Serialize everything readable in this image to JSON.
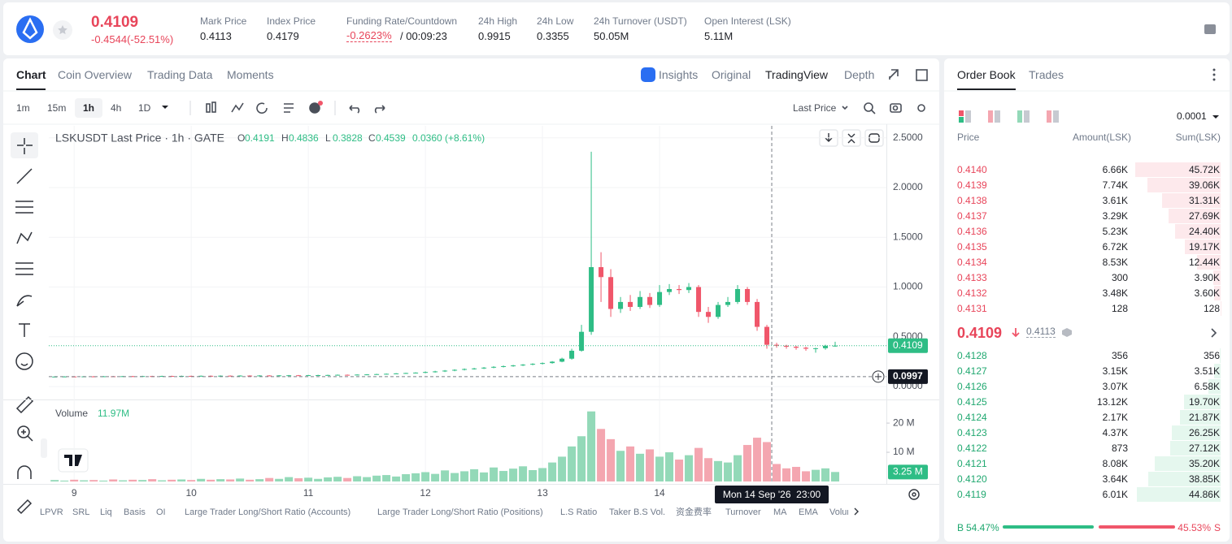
{
  "header": {
    "price": "0.4109",
    "change": "-0.4544(-52.51%)",
    "stats": [
      {
        "label": "Mark Price",
        "value": "0.4113"
      },
      {
        "label": "Index Price",
        "value": "0.4179"
      },
      {
        "label": "Funding Rate/Countdown",
        "value": "-0.2623%",
        "extra": "/ 00:09:23"
      },
      {
        "label": "24h High",
        "value": "0.9915"
      },
      {
        "label": "24h Low",
        "value": "0.3355"
      },
      {
        "label": "24h Turnover (USDT)",
        "value": "50.05M"
      },
      {
        "label": "Open Interest (LSK)",
        "value": "5.11M"
      }
    ]
  },
  "tabs": [
    "Chart",
    "Coin Overview",
    "Trading Data",
    "Moments"
  ],
  "view_tabs": [
    "Insights",
    "Original",
    "TradingView",
    "Depth"
  ],
  "intervals": [
    "1m",
    "15m",
    "1h",
    "4h",
    "1D"
  ],
  "price_source": "Last Price",
  "indicators": [
    "LPVR",
    "SRL",
    "Liq",
    "Basis",
    "OI",
    "Large Trader Long/Short Ratio (Accounts)",
    "Large Trader Long/Short Ratio (Positions)",
    "L.S Ratio",
    "Taker B.S Vol.",
    "资金费率",
    "Turnover",
    "MA",
    "EMA",
    "Volume"
  ],
  "chart_data": {
    "type": "candlestick",
    "title": "LSKUSDT Last Price · 1h · GATE",
    "ohlc_legend": [
      {
        "key": "O",
        "value": 0.4191
      },
      {
        "key": "H",
        "value": 0.4836
      },
      {
        "key": "L",
        "value": 0.3828
      },
      {
        "key": "C",
        "value": 0.4539
      }
    ],
    "change": "0.0360 (+8.61%)",
    "x": [
      -4,
      -2,
      0,
      2,
      4,
      6,
      8,
      10,
      12,
      14,
      16,
      18,
      20,
      22,
      24,
      26,
      28,
      30,
      32,
      34,
      36,
      38,
      40,
      42,
      44,
      46,
      48,
      50,
      52,
      54,
      56,
      58,
      60,
      62,
      64,
      66,
      68,
      70,
      72,
      74,
      76,
      78,
      80,
      82,
      84,
      86,
      88,
      90,
      92,
      94,
      96,
      98,
      100,
      102,
      104,
      106,
      108,
      110,
      112,
      114,
      116,
      118,
      120,
      122,
      124,
      126,
      128,
      130,
      132,
      134,
      136,
      138,
      140,
      142,
      144,
      146,
      148,
      150,
      152,
      154,
      156
    ],
    "open": [
      0.099,
      0.1,
      0.101,
      0.1,
      0.102,
      0.101,
      0.103,
      0.102,
      0.104,
      0.103,
      0.105,
      0.104,
      0.106,
      0.105,
      0.107,
      0.106,
      0.108,
      0.107,
      0.109,
      0.108,
      0.11,
      0.109,
      0.111,
      0.11,
      0.112,
      0.113,
      0.112,
      0.114,
      0.115,
      0.116,
      0.118,
      0.117,
      0.12,
      0.122,
      0.125,
      0.128,
      0.132,
      0.136,
      0.14,
      0.146,
      0.152,
      0.16,
      0.168,
      0.176,
      0.182,
      0.19,
      0.198,
      0.205,
      0.212,
      0.22,
      0.228,
      0.236,
      0.25,
      0.28,
      0.36,
      0.55,
      1.2,
      1.1,
      0.78,
      0.85,
      0.8,
      0.9,
      0.82,
      0.95,
      0.98,
      0.97,
      1.0,
      0.75,
      0.7,
      0.82,
      0.85,
      0.98,
      0.85,
      0.6,
      0.42,
      0.41,
      0.4,
      0.39,
      0.38,
      0.385,
      0.41
    ],
    "high": [
      0.103,
      0.104,
      0.104,
      0.105,
      0.105,
      0.106,
      0.106,
      0.107,
      0.107,
      0.108,
      0.108,
      0.109,
      0.109,
      0.11,
      0.11,
      0.111,
      0.111,
      0.112,
      0.112,
      0.113,
      0.113,
      0.114,
      0.114,
      0.115,
      0.116,
      0.116,
      0.117,
      0.118,
      0.119,
      0.121,
      0.121,
      0.123,
      0.125,
      0.128,
      0.131,
      0.135,
      0.139,
      0.143,
      0.152,
      0.158,
      0.166,
      0.174,
      0.182,
      0.188,
      0.196,
      0.204,
      0.211,
      0.218,
      0.226,
      0.234,
      0.242,
      0.256,
      0.29,
      0.38,
      0.62,
      2.36,
      1.35,
      1.18,
      0.9,
      0.92,
      0.96,
      0.94,
      1.02,
      1.03,
      1.02,
      1.04,
      1.02,
      0.8,
      0.85,
      0.9,
      1.02,
      1.0,
      0.88,
      0.62,
      0.44,
      0.42,
      0.41,
      0.4,
      0.39,
      0.42,
      0.45
    ],
    "low": [
      0.096,
      0.097,
      0.097,
      0.097,
      0.098,
      0.098,
      0.099,
      0.099,
      0.1,
      0.1,
      0.101,
      0.101,
      0.102,
      0.102,
      0.103,
      0.103,
      0.104,
      0.104,
      0.105,
      0.105,
      0.106,
      0.106,
      0.107,
      0.107,
      0.109,
      0.109,
      0.109,
      0.111,
      0.112,
      0.113,
      0.114,
      0.114,
      0.117,
      0.119,
      0.122,
      0.125,
      0.129,
      0.133,
      0.134,
      0.14,
      0.146,
      0.154,
      0.162,
      0.17,
      0.176,
      0.184,
      0.192,
      0.199,
      0.206,
      0.214,
      0.222,
      0.23,
      0.244,
      0.27,
      0.35,
      0.52,
      0.85,
      0.7,
      0.74,
      0.76,
      0.78,
      0.79,
      0.8,
      0.92,
      0.93,
      0.94,
      0.7,
      0.64,
      0.68,
      0.8,
      0.83,
      0.82,
      0.56,
      0.38,
      0.39,
      0.38,
      0.37,
      0.36,
      0.34,
      0.37,
      0.4
    ],
    "close": [
      0.1,
      0.101,
      0.1,
      0.102,
      0.101,
      0.103,
      0.102,
      0.104,
      0.103,
      0.105,
      0.104,
      0.106,
      0.105,
      0.107,
      0.106,
      0.108,
      0.107,
      0.109,
      0.108,
      0.11,
      0.109,
      0.111,
      0.11,
      0.112,
      0.113,
      0.112,
      0.114,
      0.115,
      0.116,
      0.118,
      0.117,
      0.12,
      0.122,
      0.125,
      0.128,
      0.132,
      0.136,
      0.14,
      0.146,
      0.152,
      0.16,
      0.168,
      0.176,
      0.182,
      0.19,
      0.198,
      0.205,
      0.212,
      0.22,
      0.228,
      0.236,
      0.25,
      0.28,
      0.36,
      0.55,
      1.2,
      1.1,
      0.78,
      0.85,
      0.8,
      0.9,
      0.82,
      0.95,
      0.98,
      0.97,
      1.0,
      0.75,
      0.7,
      0.82,
      0.85,
      0.98,
      0.85,
      0.6,
      0.42,
      0.41,
      0.4,
      0.39,
      0.38,
      0.385,
      0.41,
      0.4109
    ],
    "up_color": "#2ebd85",
    "down_color": "#f0566a",
    "xlim": [
      -5.2,
      166.5
    ],
    "xticks": [
      {
        "value": 0,
        "label": "9"
      },
      {
        "value": 24,
        "label": "10"
      },
      {
        "value": 48,
        "label": "11"
      },
      {
        "value": 72,
        "label": "12"
      },
      {
        "value": 96,
        "label": "13"
      },
      {
        "value": 120,
        "label": "14"
      }
    ],
    "ylim": [
      -0.13,
      2.62
    ],
    "yticks": [
      {
        "value": 0,
        "label": "0.0000"
      },
      {
        "value": 0.5,
        "label": "0.5000"
      },
      {
        "value": 1,
        "label": "1.0000"
      },
      {
        "value": 1.5,
        "label": "1.5000"
      },
      {
        "value": 2,
        "label": "2.0000"
      },
      {
        "value": 2.5,
        "label": "2.5000"
      }
    ],
    "grid": true,
    "last_price": 0.4109,
    "crosshair": {
      "x": 143,
      "y": 0.0997,
      "label": "Mon 14 Sep '26  23:00"
    },
    "volume": {
      "name": "Volume",
      "value_text": "11.97M",
      "values": [
        0.5,
        0.3,
        0.6,
        0.4,
        0.5,
        0.3,
        0.7,
        0.4,
        0.6,
        0.5,
        0.8,
        0.4,
        0.6,
        0.7,
        0.5,
        0.9,
        0.6,
        0.8,
        0.7,
        1.0,
        0.6,
        0.8,
        1.2,
        0.9,
        1.5,
        1.1,
        1.3,
        0.9,
        1.4,
        1.6,
        1.2,
        1.8,
        1.5,
        2.0,
        2.2,
        1.7,
        2.5,
        2.8,
        3.2,
        2.6,
        3.8,
        2.9,
        3.5,
        4.2,
        3.1,
        4.8,
        3.6,
        4.4,
        5.2,
        3.9,
        4.6,
        6.5,
        8.5,
        12.0,
        15.5,
        24.0,
        18.0,
        14.5,
        10.5,
        12.0,
        9.5,
        11.0,
        8.5,
        10.0,
        7.5,
        9.0,
        11.5,
        8.0,
        7.0,
        6.5,
        9.0,
        12.5,
        15.0,
        13.5,
        6.0,
        4.5,
        5.0,
        3.5,
        4.0,
        4.5,
        3.25
      ],
      "ylim": [
        0,
        26.7
      ],
      "yticks": [
        {
          "value": 10,
          "label": "10 M"
        },
        {
          "value": 20,
          "label": "20 M"
        }
      ],
      "last": {
        "value": 3.25,
        "label": "3.25 M"
      },
      "up_color": "#93d9b8",
      "down_color": "#f4a6b0"
    }
  },
  "order_book": {
    "tabs": [
      "Order Book",
      "Trades"
    ],
    "tick_size": "0.0001",
    "headers": [
      "Price",
      "Amount(LSK)",
      "Sum(LSK)"
    ],
    "asks": [
      {
        "price": "0.4140",
        "amount": "6.66K",
        "sum": {
          "value": 45720,
          "label": "45.72K"
        }
      },
      {
        "price": "0.4139",
        "amount": "7.74K",
        "sum": {
          "value": 39060,
          "label": "39.06K"
        }
      },
      {
        "price": "0.4138",
        "amount": "3.61K",
        "sum": {
          "value": 31310,
          "label": "31.31K"
        }
      },
      {
        "price": "0.4137",
        "amount": "3.29K",
        "sum": {
          "value": 27690,
          "label": "27.69K"
        }
      },
      {
        "price": "0.4136",
        "amount": "5.23K",
        "sum": {
          "value": 24400,
          "label": "24.40K"
        }
      },
      {
        "price": "0.4135",
        "amount": "6.72K",
        "sum": {
          "value": 19170,
          "label": "19.17K"
        }
      },
      {
        "price": "0.4134",
        "amount": "8.53K",
        "sum": {
          "value": 12440,
          "label": "12.44K"
        }
      },
      {
        "price": "0.4133",
        "amount": "300",
        "sum": {
          "value": 3900,
          "label": "3.90K"
        }
      },
      {
        "price": "0.4132",
        "amount": "3.48K",
        "sum": {
          "value": 3600,
          "label": "3.60K"
        }
      },
      {
        "price": "0.4131",
        "amount": "128",
        "sum": 128
      }
    ],
    "mid_price": "0.4109",
    "mark_price": "0.4113",
    "bids": [
      {
        "price": "0.4128",
        "amount": "356",
        "sum": 356
      },
      {
        "price": "0.4127",
        "amount": "3.15K",
        "sum": {
          "value": 3510,
          "label": "3.51K"
        }
      },
      {
        "price": "0.4126",
        "amount": "3.07K",
        "sum": {
          "value": 6580,
          "label": "6.58K"
        }
      },
      {
        "price": "0.4125",
        "amount": "13.12K",
        "sum": {
          "value": 19700,
          "label": "19.70K"
        }
      },
      {
        "price": "0.4124",
        "amount": "2.17K",
        "sum": {
          "value": 21870,
          "label": "21.87K"
        }
      },
      {
        "price": "0.4123",
        "amount": "4.37K",
        "sum": {
          "value": 26250,
          "label": "26.25K"
        }
      },
      {
        "price": "0.4122",
        "amount": "873",
        "sum": {
          "value": 27120,
          "label": "27.12K"
        }
      },
      {
        "price": "0.4121",
        "amount": "8.08K",
        "sum": {
          "value": 35200,
          "label": "35.20K"
        }
      },
      {
        "price": "0.4120",
        "amount": "3.64K",
        "sum": {
          "value": 38850,
          "label": "38.85K"
        }
      },
      {
        "price": "0.4119",
        "amount": "6.01K",
        "sum": {
          "value": 44860,
          "label": "44.86K"
        }
      }
    ],
    "buy": {
      "key": "B",
      "ratio": {
        "value": 54.47,
        "label": "54.47%"
      }
    },
    "sell": {
      "key": "S",
      "ratio": {
        "value": 45.53,
        "label": "45.53%"
      }
    }
  }
}
